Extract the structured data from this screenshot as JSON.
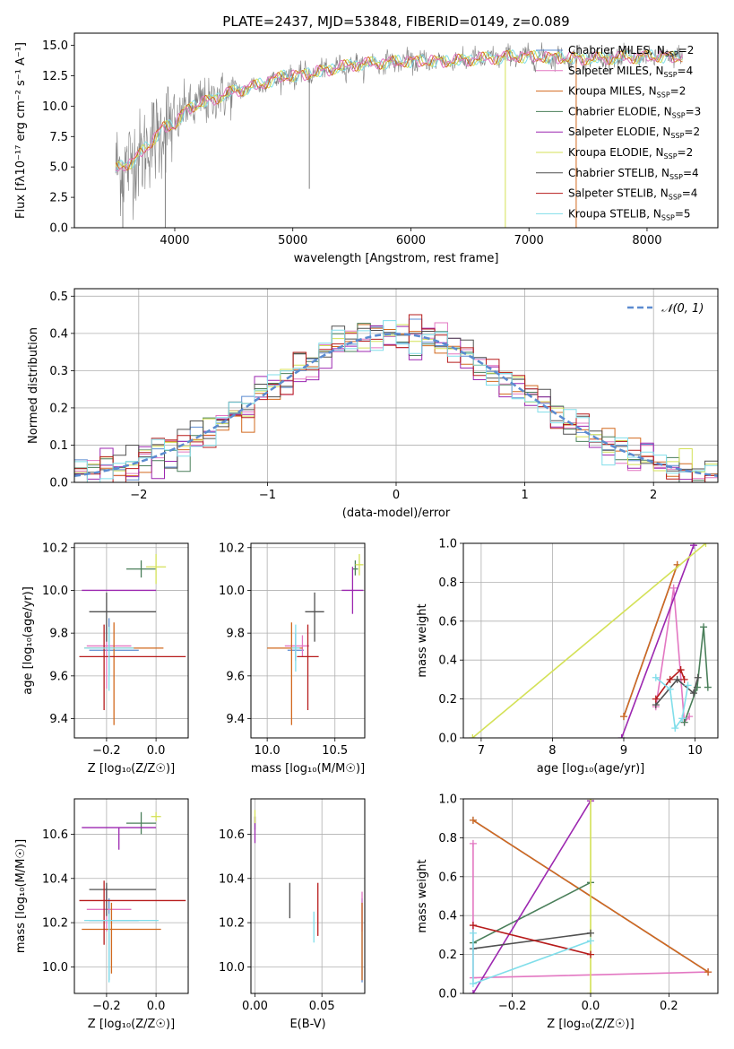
{
  "colors": {
    "Chabrier MILES": "#5b8bd0",
    "Salpeter MILES": "#e377c2",
    "Kroupa MILES": "#d2691e",
    "Chabrier ELODIE": "#4a7f5a",
    "Salpeter ELODIE": "#9c27b0",
    "Kroupa ELODIE": "#d4e157",
    "Chabrier STELIB": "#505050",
    "Salpeter STELIB": "#b71c1c",
    "Kroupa STELIB": "#80deea",
    "data": "#808080"
  },
  "chart_data": [
    {
      "id": "spectrum",
      "type": "line",
      "title": "PLATE=2437, MJD=53848, FIBERID=0149, z=0.089",
      "xlabel": "wavelength [Angstrom, rest frame]",
      "ylabel": "Flux [fλ10⁻¹⁷ erg cm⁻² s⁻¹ A⁻¹]",
      "xlim": [
        3150,
        8600
      ],
      "ylim": [
        0,
        16
      ],
      "xticks": [
        4000,
        5000,
        6000,
        7000,
        8000
      ],
      "yticks": [
        0.0,
        2.5,
        5.0,
        7.5,
        10.0,
        12.5,
        15.0
      ],
      "ytick_labels": [
        "0.0",
        "2.5",
        "5.0",
        "7.5",
        "10.0",
        "12.5",
        "15.0"
      ],
      "legend_position": "top-right",
      "legend": [
        {
          "label": "Chabrier MILES, N",
          "sub": "SSP",
          "suffix": "=2",
          "key": "Chabrier MILES"
        },
        {
          "label": "Salpeter MILES, N",
          "sub": "SSP",
          "suffix": "=4",
          "key": "Salpeter MILES"
        },
        {
          "label": "Kroupa MILES, N",
          "sub": "SSP",
          "suffix": "=2",
          "key": "Kroupa MILES"
        },
        {
          "label": "Chabrier ELODIE, N",
          "sub": "SSP",
          "suffix": "=3",
          "key": "Chabrier ELODIE"
        },
        {
          "label": "Salpeter ELODIE, N",
          "sub": "SSP",
          "suffix": "=2",
          "key": "Salpeter ELODIE"
        },
        {
          "label": "Kroupa ELODIE, N",
          "sub": "SSP",
          "suffix": "=2",
          "key": "Kroupa ELODIE"
        },
        {
          "label": "Chabrier STELIB, N",
          "sub": "SSP",
          "suffix": "=4",
          "key": "Chabrier STELIB"
        },
        {
          "label": "Salpeter STELIB, N",
          "sub": "SSP",
          "suffix": "=4",
          "key": "Salpeter STELIB"
        },
        {
          "label": "Kroupa STELIB, N",
          "sub": "SSP",
          "suffix": "=5",
          "key": "Kroupa STELIB"
        }
      ],
      "continuum": {
        "x": [
          3500,
          3650,
          3800,
          3900,
          4000,
          4100,
          4300,
          4500,
          4700,
          4900,
          5100,
          5300,
          5500,
          5800,
          6000,
          6300,
          6600,
          6900,
          7200,
          7500,
          7800,
          8100,
          8300
        ],
        "y": [
          4.8,
          5.5,
          7.0,
          8.3,
          8.4,
          9.8,
          10.5,
          11.2,
          11.7,
          12.4,
          12.6,
          13.0,
          13.4,
          13.6,
          13.7,
          13.7,
          13.9,
          14.1,
          14.0,
          13.9,
          14.0,
          14.1,
          14.0
        ]
      },
      "spikes": [
        {
          "x": 5140,
          "y": 3.2
        },
        {
          "x": 6800,
          "y": 0.0
        },
        {
          "x": 7400,
          "y": 0.0
        },
        {
          "x": 3920,
          "y": 0.0
        },
        {
          "x": 3560,
          "y": 0.0
        }
      ]
    },
    {
      "id": "residual-histogram",
      "type": "histogram",
      "xlabel": "(data-model)/error",
      "ylabel": "Normed distribution",
      "xlim": [
        -2.5,
        2.5
      ],
      "ylim": [
        0,
        0.52
      ],
      "xticks": [
        -2,
        -1,
        0,
        1,
        2
      ],
      "xtick_labels": [
        "−2",
        "−1",
        "0",
        "1",
        "2"
      ],
      "yticks": [
        0.0,
        0.1,
        0.2,
        0.3,
        0.4,
        0.5
      ],
      "ytick_labels": [
        "0.0",
        "0.1",
        "0.2",
        "0.3",
        "0.4",
        "0.5"
      ],
      "bin_width": 0.1,
      "reference_label": "𝒩(0, 1)",
      "legend_position": "top-right"
    },
    {
      "id": "age-vs-Z",
      "type": "errorbar",
      "xlabel": "Z [log₁₀(Z/Z☉)]",
      "ylabel": "age  [log₁₀(age/yr)]",
      "xlim": [
        -0.33,
        0.13
      ],
      "ylim": [
        9.31,
        10.22
      ],
      "xticks": [
        -0.2,
        0.0
      ],
      "xtick_labels": [
        "−0.2",
        "0.0"
      ],
      "yticks": [
        9.4,
        9.6,
        9.8,
        10.0,
        10.2
      ],
      "ytick_labels": [
        "9.4",
        "9.6",
        "9.8",
        "10.0",
        "10.2"
      ],
      "points": [
        {
          "key": "Chabrier MILES",
          "x": -0.19,
          "y": 9.72,
          "xerr": [
            0.08,
            0.12
          ],
          "yerr": [
            0.12,
            0.15
          ]
        },
        {
          "key": "Salpeter MILES",
          "x": -0.2,
          "y": 9.74,
          "xerr": [
            0.08,
            0.1
          ],
          "yerr": [
            0.2,
            0.1
          ]
        },
        {
          "key": "Kroupa MILES",
          "x": -0.17,
          "y": 9.73,
          "xerr": [
            0.12,
            0.2
          ],
          "yerr": [
            0.36,
            0.12
          ]
        },
        {
          "key": "Chabrier ELODIE",
          "x": -0.06,
          "y": 10.1,
          "xerr": [
            0.06,
            0.06
          ],
          "yerr": [
            0.04,
            0.04
          ]
        },
        {
          "key": "Salpeter ELODIE",
          "x": -0.15,
          "y": 10.0,
          "xerr": [
            0.15,
            0.15
          ],
          "yerr": [
            0.0,
            0.0
          ]
        },
        {
          "key": "Kroupa ELODIE",
          "x": 0.0,
          "y": 10.11,
          "xerr": [
            0.04,
            0.04
          ],
          "yerr": [
            0.08,
            0.06
          ]
        },
        {
          "key": "Chabrier STELIB",
          "x": -0.2,
          "y": 9.9,
          "xerr": [
            0.07,
            0.2
          ],
          "yerr": [
            0.14,
            0.09
          ]
        },
        {
          "key": "Salpeter STELIB",
          "x": -0.21,
          "y": 9.69,
          "xerr": [
            0.1,
            0.33
          ],
          "yerr": [
            0.25,
            0.15
          ]
        },
        {
          "key": "Kroupa STELIB",
          "x": -0.19,
          "y": 9.73,
          "xerr": [
            0.1,
            0.1
          ],
          "yerr": [
            0.2,
            0.1
          ]
        }
      ]
    },
    {
      "id": "age-vs-mass",
      "type": "errorbar",
      "xlabel": "mass [log₁₀(M/M☉)]",
      "ylabel": "",
      "xlim": [
        9.88,
        10.72
      ],
      "ylim": [
        9.31,
        10.22
      ],
      "xticks": [
        10.0,
        10.5
      ],
      "xtick_labels": [
        "10.0",
        "10.5"
      ],
      "yticks": [
        9.4,
        9.6,
        9.8,
        10.0,
        10.2
      ],
      "ytick_labels": [
        "9.4",
        "9.6",
        "9.8",
        "10.0",
        "10.2"
      ],
      "points": [
        {
          "key": "Chabrier MILES",
          "x": 10.21,
          "y": 9.72,
          "xerr": [
            0.06,
            0.06
          ],
          "yerr": [
            0.05,
            0.08
          ]
        },
        {
          "key": "Salpeter MILES",
          "x": 10.26,
          "y": 9.74,
          "xerr": [
            0.13,
            0.05
          ],
          "yerr": [
            0.05,
            0.05
          ]
        },
        {
          "key": "Kroupa MILES",
          "x": 10.18,
          "y": 9.73,
          "xerr": [
            0.18,
            0.08
          ],
          "yerr": [
            0.36,
            0.12
          ]
        },
        {
          "key": "Chabrier ELODIE",
          "x": 10.65,
          "y": 10.1,
          "xerr": [
            0.02,
            0.02
          ],
          "yerr": [
            0.03,
            0.04
          ]
        },
        {
          "key": "Salpeter ELODIE",
          "x": 10.63,
          "y": 10.0,
          "xerr": [
            0.08,
            0.08
          ],
          "yerr": [
            0.11,
            0.11
          ]
        },
        {
          "key": "Kroupa ELODIE",
          "x": 10.68,
          "y": 10.12,
          "xerr": [
            0.03,
            0.03
          ],
          "yerr": [
            0.05,
            0.05
          ]
        },
        {
          "key": "Chabrier STELIB",
          "x": 10.35,
          "y": 9.9,
          "xerr": [
            0.07,
            0.07
          ],
          "yerr": [
            0.14,
            0.09
          ]
        },
        {
          "key": "Salpeter STELIB",
          "x": 10.3,
          "y": 9.69,
          "xerr": [
            0.08,
            0.08
          ],
          "yerr": [
            0.25,
            0.15
          ]
        },
        {
          "key": "Kroupa STELIB",
          "x": 10.21,
          "y": 9.73,
          "xerr": [
            0.03,
            0.03
          ],
          "yerr": [
            0.11,
            0.11
          ]
        }
      ]
    },
    {
      "id": "weight-vs-age",
      "type": "line",
      "xlabel": "age  [log₁₀(age/yr)]",
      "ylabel": "mass weight",
      "xlim": [
        6.75,
        10.32
      ],
      "ylim": [
        0,
        1
      ],
      "xticks": [
        7,
        8,
        9,
        10
      ],
      "xtick_labels": [
        "7",
        "8",
        "9",
        "10"
      ],
      "yticks": [
        0.0,
        0.2,
        0.4,
        0.6,
        0.8,
        1.0
      ],
      "ytick_labels": [
        "0.0",
        "0.2",
        "0.4",
        "0.6",
        "0.8",
        "1.0"
      ],
      "series": [
        {
          "key": "Chabrier MILES",
          "x": [
            9.0,
            9.75
          ],
          "y": [
            0.11,
            0.89
          ]
        },
        {
          "key": "Salpeter MILES",
          "x": [
            9.45,
            9.7,
            9.85,
            9.92
          ],
          "y": [
            0.16,
            0.77,
            0.08,
            0.11
          ]
        },
        {
          "key": "Kroupa MILES",
          "x": [
            9.0,
            9.75
          ],
          "y": [
            0.11,
            0.89
          ]
        },
        {
          "key": "Chabrier ELODIE",
          "x": [
            9.85,
            10.03,
            10.12,
            10.18
          ],
          "y": [
            0.08,
            0.26,
            0.57,
            0.26
          ]
        },
        {
          "key": "Salpeter ELODIE",
          "x": [
            8.97,
            9.98
          ],
          "y": [
            0.0,
            0.99
          ]
        },
        {
          "key": "Kroupa ELODIE",
          "x": [
            6.88,
            10.15
          ],
          "y": [
            0.0,
            1.0
          ]
        },
        {
          "key": "Chabrier STELIB",
          "x": [
            9.45,
            9.75,
            9.98,
            10.04
          ],
          "y": [
            0.17,
            0.3,
            0.23,
            0.31
          ]
        },
        {
          "key": "Salpeter STELIB",
          "x": [
            9.45,
            9.65,
            9.8,
            9.85
          ],
          "y": [
            0.2,
            0.3,
            0.35,
            0.3
          ]
        },
        {
          "key": "Kroupa STELIB",
          "x": [
            9.45,
            9.65,
            9.72,
            9.82,
            9.9
          ],
          "y": [
            0.31,
            0.25,
            0.05,
            0.1,
            0.27
          ]
        }
      ]
    },
    {
      "id": "mass-vs-Z",
      "type": "errorbar",
      "xlabel": "Z [log₁₀(Z/Z☉)]",
      "ylabel": "mass [log₁₀(M/M☉)]",
      "xlim": [
        -0.33,
        0.13
      ],
      "ylim": [
        9.88,
        10.76
      ],
      "xticks": [
        -0.2,
        0.0
      ],
      "xtick_labels": [
        "−0.2",
        "0.0"
      ],
      "yticks": [
        10.0,
        10.2,
        10.4,
        10.6
      ],
      "ytick_labels": [
        "10.0",
        "10.2",
        "10.4",
        "10.6"
      ],
      "points": [
        {
          "key": "Chabrier MILES",
          "x": -0.19,
          "y": 10.21,
          "xerr": [
            0.08,
            0.12
          ],
          "yerr": [
            0.27,
            0.1
          ]
        },
        {
          "key": "Salpeter MILES",
          "x": -0.2,
          "y": 10.26,
          "xerr": [
            0.08,
            0.1
          ],
          "yerr": [
            0.1,
            0.1
          ]
        },
        {
          "key": "Kroupa MILES",
          "x": -0.18,
          "y": 10.17,
          "xerr": [
            0.12,
            0.2
          ],
          "yerr": [
            0.2,
            0.12
          ]
        },
        {
          "key": "Chabrier ELODIE",
          "x": -0.06,
          "y": 10.65,
          "xerr": [
            0.06,
            0.06
          ],
          "yerr": [
            0.05,
            0.05
          ]
        },
        {
          "key": "Salpeter ELODIE",
          "x": -0.15,
          "y": 10.63,
          "xerr": [
            0.15,
            0.15
          ],
          "yerr": [
            0.1,
            0.0
          ]
        },
        {
          "key": "Kroupa ELODIE",
          "x": 0.0,
          "y": 10.68,
          "xerr": [
            0.02,
            0.02
          ],
          "yerr": [
            0.02,
            0.02
          ]
        },
        {
          "key": "Chabrier STELIB",
          "x": -0.2,
          "y": 10.35,
          "xerr": [
            0.07,
            0.2
          ],
          "yerr": [
            0.12,
            0.03
          ]
        },
        {
          "key": "Salpeter STELIB",
          "x": -0.21,
          "y": 10.3,
          "xerr": [
            0.1,
            0.33
          ],
          "yerr": [
            0.2,
            0.09
          ]
        },
        {
          "key": "Kroupa STELIB",
          "x": -0.19,
          "y": 10.21,
          "xerr": [
            0.1,
            0.2
          ],
          "yerr": [
            0.28,
            0.03
          ]
        }
      ]
    },
    {
      "id": "mass-vs-EBV",
      "type": "errorbar",
      "xlabel": "E(B-V)",
      "ylabel": "",
      "xlim": [
        -0.003,
        0.082
      ],
      "ylim": [
        9.88,
        10.76
      ],
      "xticks": [
        0.0,
        0.05
      ],
      "xtick_labels": [
        "0.00",
        "0.05"
      ],
      "yticks": [
        10.0,
        10.2,
        10.4,
        10.6
      ],
      "ytick_labels": [
        "10.0",
        "10.2",
        "10.4",
        "10.6"
      ],
      "points": [
        {
          "key": "Chabrier MILES",
          "x": 0.08,
          "y": 10.21,
          "xerr": [
            0,
            0
          ],
          "yerr": [
            0.28,
            0.1
          ]
        },
        {
          "key": "Salpeter MILES",
          "x": 0.08,
          "y": 10.26,
          "xerr": [
            0,
            0
          ],
          "yerr": [
            0.1,
            0.08
          ]
        },
        {
          "key": "Kroupa MILES",
          "x": 0.08,
          "y": 10.17,
          "xerr": [
            0,
            0
          ],
          "yerr": [
            0.23,
            0.12
          ]
        },
        {
          "key": "Chabrier ELODIE",
          "x": 0.0,
          "y": 10.65,
          "xerr": [
            0,
            0
          ],
          "yerr": [
            0.03,
            0.03
          ]
        },
        {
          "key": "Salpeter ELODIE",
          "x": 0.0,
          "y": 10.63,
          "xerr": [
            0,
            0
          ],
          "yerr": [
            0.07,
            0.05
          ]
        },
        {
          "key": "Kroupa ELODIE",
          "x": 0.0,
          "y": 10.68,
          "xerr": [
            0,
            0
          ],
          "yerr": [
            0.03,
            0.03
          ]
        },
        {
          "key": "Chabrier STELIB",
          "x": 0.026,
          "y": 10.3,
          "xerr": [
            0,
            0
          ],
          "yerr": [
            0.08,
            0.08
          ]
        },
        {
          "key": "Salpeter STELIB",
          "x": 0.047,
          "y": 10.26,
          "xerr": [
            0,
            0
          ],
          "yerr": [
            0.12,
            0.12
          ]
        },
        {
          "key": "Kroupa STELIB",
          "x": 0.044,
          "y": 10.18,
          "xerr": [
            0,
            0
          ],
          "yerr": [
            0.07,
            0.07
          ]
        }
      ]
    },
    {
      "id": "weight-vs-Z",
      "type": "line",
      "xlabel": "Z [log₁₀(Z/Z☉)]",
      "ylabel": "mass weight",
      "xlim": [
        -0.325,
        0.325
      ],
      "ylim": [
        0,
        1
      ],
      "xticks": [
        -0.2,
        0.0,
        0.2
      ],
      "xtick_labels": [
        "−0.2",
        "0.0",
        "0.2"
      ],
      "yticks": [
        0.0,
        0.2,
        0.4,
        0.6,
        0.8,
        1.0
      ],
      "ytick_labels": [
        "0.0",
        "0.2",
        "0.4",
        "0.6",
        "0.8",
        "1.0"
      ],
      "series": [
        {
          "key": "Chabrier MILES",
          "x": [
            -0.3,
            0.3
          ],
          "y": [
            0.89,
            0.11
          ]
        },
        {
          "key": "Salpeter MILES",
          "x": [
            -0.3,
            -0.3,
            0.3
          ],
          "y": [
            0.77,
            0.08,
            0.11
          ]
        },
        {
          "key": "Kroupa MILES",
          "x": [
            -0.3,
            0.3
          ],
          "y": [
            0.89,
            0.11
          ]
        },
        {
          "key": "Chabrier ELODIE",
          "x": [
            -0.3,
            0.0
          ],
          "y": [
            0.26,
            0.57
          ]
        },
        {
          "key": "Salpeter ELODIE",
          "x": [
            -0.3,
            0.0
          ],
          "y": [
            0.0,
            0.99
          ]
        },
        {
          "key": "Kroupa ELODIE",
          "x": [
            0.0,
            0.0
          ],
          "y": [
            0.0,
            1.0
          ]
        },
        {
          "key": "Chabrier STELIB",
          "x": [
            -0.3,
            0.0
          ],
          "y": [
            0.23,
            0.31
          ]
        },
        {
          "key": "Salpeter STELIB",
          "x": [
            -0.3,
            0.0
          ],
          "y": [
            0.35,
            0.2
          ]
        },
        {
          "key": "Kroupa STELIB",
          "x": [
            -0.3,
            -0.3,
            0.0
          ],
          "y": [
            0.31,
            0.05,
            0.27
          ]
        }
      ]
    }
  ]
}
